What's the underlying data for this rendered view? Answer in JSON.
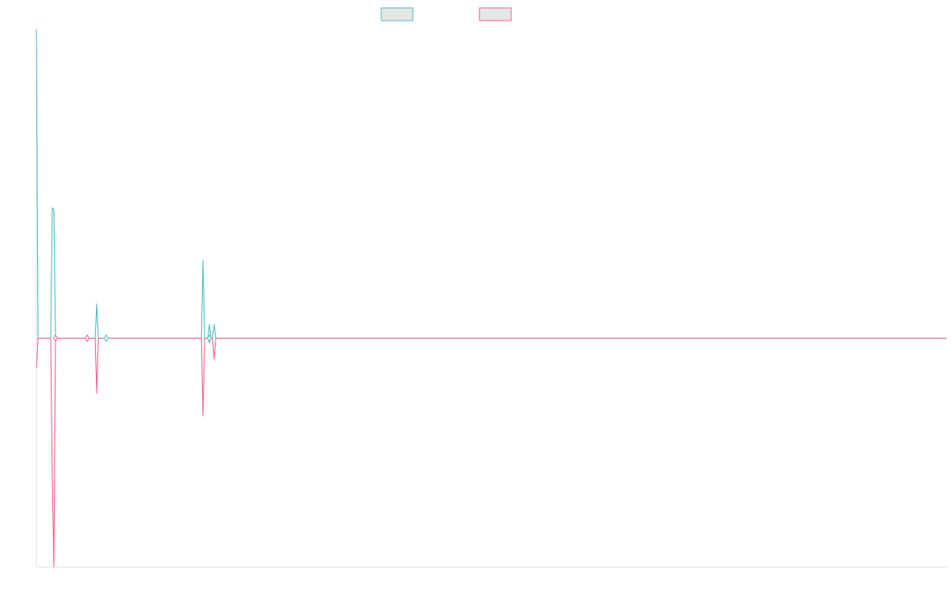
{
  "legend": [
    {
      "label": "",
      "stroke": "#4bbfc0",
      "fill": "#e6e6e6"
    },
    {
      "label": "",
      "stroke": "#f0648a",
      "fill": "#e6e6e6"
    }
  ],
  "chart_data": {
    "type": "line",
    "title": "",
    "xlabel": "",
    "ylabel": "",
    "grid": false,
    "legend_position": "top-center",
    "x": [
      0,
      1,
      2,
      3,
      4,
      5,
      6,
      7,
      8,
      9,
      10,
      11,
      12,
      13,
      14,
      15,
      16,
      17,
      18,
      19,
      20,
      21,
      22,
      23,
      24,
      25,
      26,
      27,
      28,
      29,
      30,
      31,
      32,
      33,
      34,
      35,
      36,
      37,
      38,
      39,
      40,
      41,
      42,
      43,
      44,
      45,
      46,
      47,
      48,
      49,
      50,
      51,
      52,
      53,
      54,
      55,
      56,
      57,
      58,
      59,
      60,
      61,
      62,
      63,
      64,
      65,
      66,
      67,
      68,
      69,
      70,
      71,
      72,
      73,
      74,
      75,
      76,
      77,
      78,
      79,
      80,
      81,
      82,
      83,
      84,
      85,
      86,
      87,
      88,
      89,
      90,
      91,
      92,
      93,
      94,
      95,
      96,
      97,
      98,
      99,
      100,
      101,
      102,
      103,
      104,
      105,
      106,
      107,
      108,
      109,
      110,
      111,
      112,
      113,
      114,
      115,
      116,
      117,
      118,
      119,
      120,
      121,
      122,
      123,
      124,
      125,
      126,
      127,
      128,
      129,
      130,
      131,
      132,
      133,
      134,
      135,
      136,
      137,
      138,
      139,
      140,
      141,
      142,
      143,
      144,
      145,
      146,
      147,
      148,
      149,
      150,
      151,
      152,
      153,
      154,
      155,
      156,
      157,
      158,
      159,
      160,
      161,
      162,
      163,
      164,
      165,
      166,
      167,
      168,
      169,
      170,
      171,
      172,
      173,
      174,
      175,
      176,
      177,
      178,
      179,
      180,
      181,
      182,
      183,
      184,
      185,
      186,
      187,
      188,
      189,
      190,
      191,
      192,
      193,
      194,
      195,
      196,
      197,
      198,
      199,
      200,
      201,
      202,
      203,
      204,
      205,
      206,
      207,
      208,
      209,
      210,
      211,
      212,
      213,
      214,
      215,
      216,
      217,
      218,
      219,
      220,
      221,
      222,
      223,
      224,
      225,
      226,
      227,
      228,
      229,
      230,
      231,
      232,
      233,
      234,
      235,
      236,
      237,
      238,
      239,
      240,
      241,
      242,
      243,
      244,
      245,
      246,
      247,
      248,
      249,
      250,
      251,
      252,
      253,
      254,
      255,
      256,
      257,
      258,
      259,
      260,
      261,
      262,
      263,
      264,
      265,
      266,
      267,
      268,
      269,
      270,
      271,
      272,
      273,
      274,
      275,
      276,
      277,
      278,
      279,
      280,
      281,
      282,
      283,
      284,
      285,
      286,
      287,
      288,
      289,
      290,
      291,
      292,
      293,
      294,
      295,
      296,
      297,
      298,
      299,
      300,
      301,
      302,
      303,
      304,
      305,
      306,
      307,
      308,
      309,
      310,
      311,
      312,
      313,
      314,
      315,
      316,
      317,
      318,
      319,
      320,
      321,
      322,
      323,
      324,
      325,
      326,
      327,
      328,
      329,
      330,
      331,
      332,
      333,
      334,
      335,
      336,
      337,
      338,
      339,
      340,
      341,
      342,
      343,
      344,
      345,
      346,
      347,
      348,
      349,
      350,
      351,
      352,
      353,
      354,
      355,
      356,
      357,
      358,
      359,
      360,
      361,
      362,
      363,
      364,
      365,
      366,
      367,
      368,
      369,
      370,
      371,
      372,
      373,
      374,
      375,
      376,
      377,
      378,
      379,
      380,
      381,
      382,
      383,
      384,
      385,
      386,
      387,
      388,
      389,
      390,
      391,
      392,
      393,
      394,
      395,
      396,
      397,
      398,
      399,
      400,
      401,
      402,
      403,
      404,
      405,
      406,
      407,
      408,
      409,
      410,
      411,
      412,
      413,
      414,
      415,
      416,
      417,
      418,
      419,
      420,
      421,
      422,
      423,
      424,
      425,
      426,
      427,
      428,
      429,
      430,
      431,
      432,
      433,
      434,
      435,
      436,
      437,
      438,
      439,
      440,
      441,
      442,
      443,
      444,
      445,
      446,
      447,
      448,
      449,
      450,
      451,
      452,
      453,
      454,
      455,
      456,
      457,
      458,
      459,
      460,
      461,
      462,
      463,
      464,
      465,
      466,
      467,
      468,
      469,
      470,
      471,
      472,
      473,
      474,
      475,
      476,
      477,
      478,
      479,
      480,
      481,
      482,
      483,
      484,
      485,
      486,
      487,
      488,
      489,
      490,
      491,
      492,
      493,
      494,
      495,
      496,
      497,
      498,
      499,
      500,
      501,
      502,
      503,
      504,
      505,
      506,
      507,
      508,
      509,
      510,
      511,
      512,
      513,
      514,
      515,
      516,
      517,
      518,
      519,
      520,
      521,
      522,
      523,
      524,
      525,
      526,
      527,
      528,
      529,
      530,
      531,
      532,
      533,
      534,
      535,
      536,
      537,
      538,
      539,
      540,
      541,
      542,
      543,
      544,
      545,
      546,
      547,
      548,
      549,
      550,
      551,
      552,
      553,
      554,
      555,
      556,
      557,
      558,
      559,
      560,
      561,
      562,
      563,
      564,
      565,
      566,
      567,
      568,
      569,
      570,
      571,
      572,
      573,
      574
    ],
    "ylim": [
      -1.0,
      1.35
    ],
    "series": [
      {
        "color": "#4bbfc0",
        "points": [
          [
            0,
            1.35
          ],
          [
            1,
            0
          ],
          [
            9,
            0
          ],
          [
            10,
            0.57
          ],
          [
            11,
            0.56
          ],
          [
            12,
            0
          ],
          [
            13,
            0
          ],
          [
            31,
            0
          ],
          [
            32,
            0
          ],
          [
            33,
            0
          ],
          [
            37,
            0
          ],
          [
            38,
            0.15
          ],
          [
            39,
            0
          ],
          [
            44,
            0
          ],
          [
            45,
            0
          ],
          [
            46,
            0
          ],
          [
            104,
            0
          ],
          [
            105,
            0.34
          ],
          [
            106,
            0
          ],
          [
            108,
            0
          ],
          [
            109,
            0.06
          ],
          [
            110,
            0
          ],
          [
            111,
            0
          ],
          [
            112,
            0.06
          ],
          [
            113,
            0
          ],
          [
            574,
            0
          ]
        ]
      },
      {
        "color": "#f0648a",
        "points": [
          [
            0,
            -0.13
          ],
          [
            1,
            0
          ],
          [
            9,
            0
          ],
          [
            10,
            -0.62
          ],
          [
            11,
            -1.0
          ],
          [
            12,
            0
          ],
          [
            13,
            0
          ],
          [
            31,
            0
          ],
          [
            32,
            0
          ],
          [
            33,
            0
          ],
          [
            37,
            0
          ],
          [
            38,
            -0.24
          ],
          [
            39,
            0
          ],
          [
            44,
            0
          ],
          [
            45,
            0
          ],
          [
            46,
            0
          ],
          [
            104,
            0
          ],
          [
            105,
            -0.34
          ],
          [
            106,
            0
          ],
          [
            108,
            0
          ],
          [
            109,
            -0.02
          ],
          [
            110,
            0
          ],
          [
            111,
            0
          ],
          [
            112,
            -0.09
          ],
          [
            113,
            0
          ],
          [
            574,
            0
          ]
        ]
      }
    ],
    "markers": [
      {
        "x": 32,
        "y": 0
      },
      {
        "x": 44,
        "y": 0
      },
      {
        "x": 12,
        "y": 0
      },
      {
        "x": 109,
        "y": 0
      }
    ]
  }
}
